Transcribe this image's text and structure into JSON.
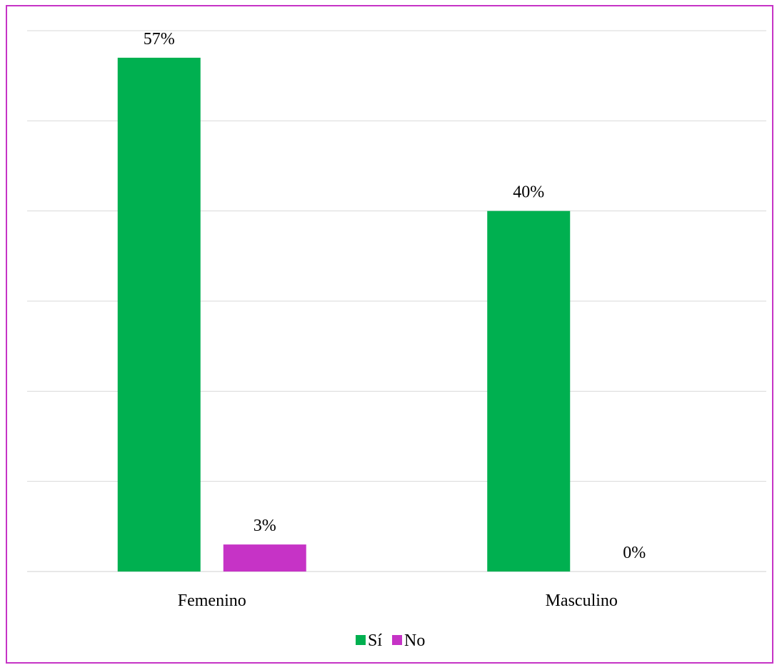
{
  "chart_data": {
    "type": "bar",
    "categories": [
      "Femenino",
      "Masculino"
    ],
    "series": [
      {
        "name": "Sí",
        "values": [
          57,
          40
        ],
        "labels": [
          "57%",
          "40%"
        ],
        "color": "#00b050"
      },
      {
        "name": "No",
        "values": [
          3,
          0
        ],
        "labels": [
          "3%",
          "0%"
        ],
        "color": "#c633c6"
      }
    ],
    "ylim": [
      0,
      60
    ],
    "grid": true,
    "legend": "bottom-center",
    "value_unit": "%"
  }
}
